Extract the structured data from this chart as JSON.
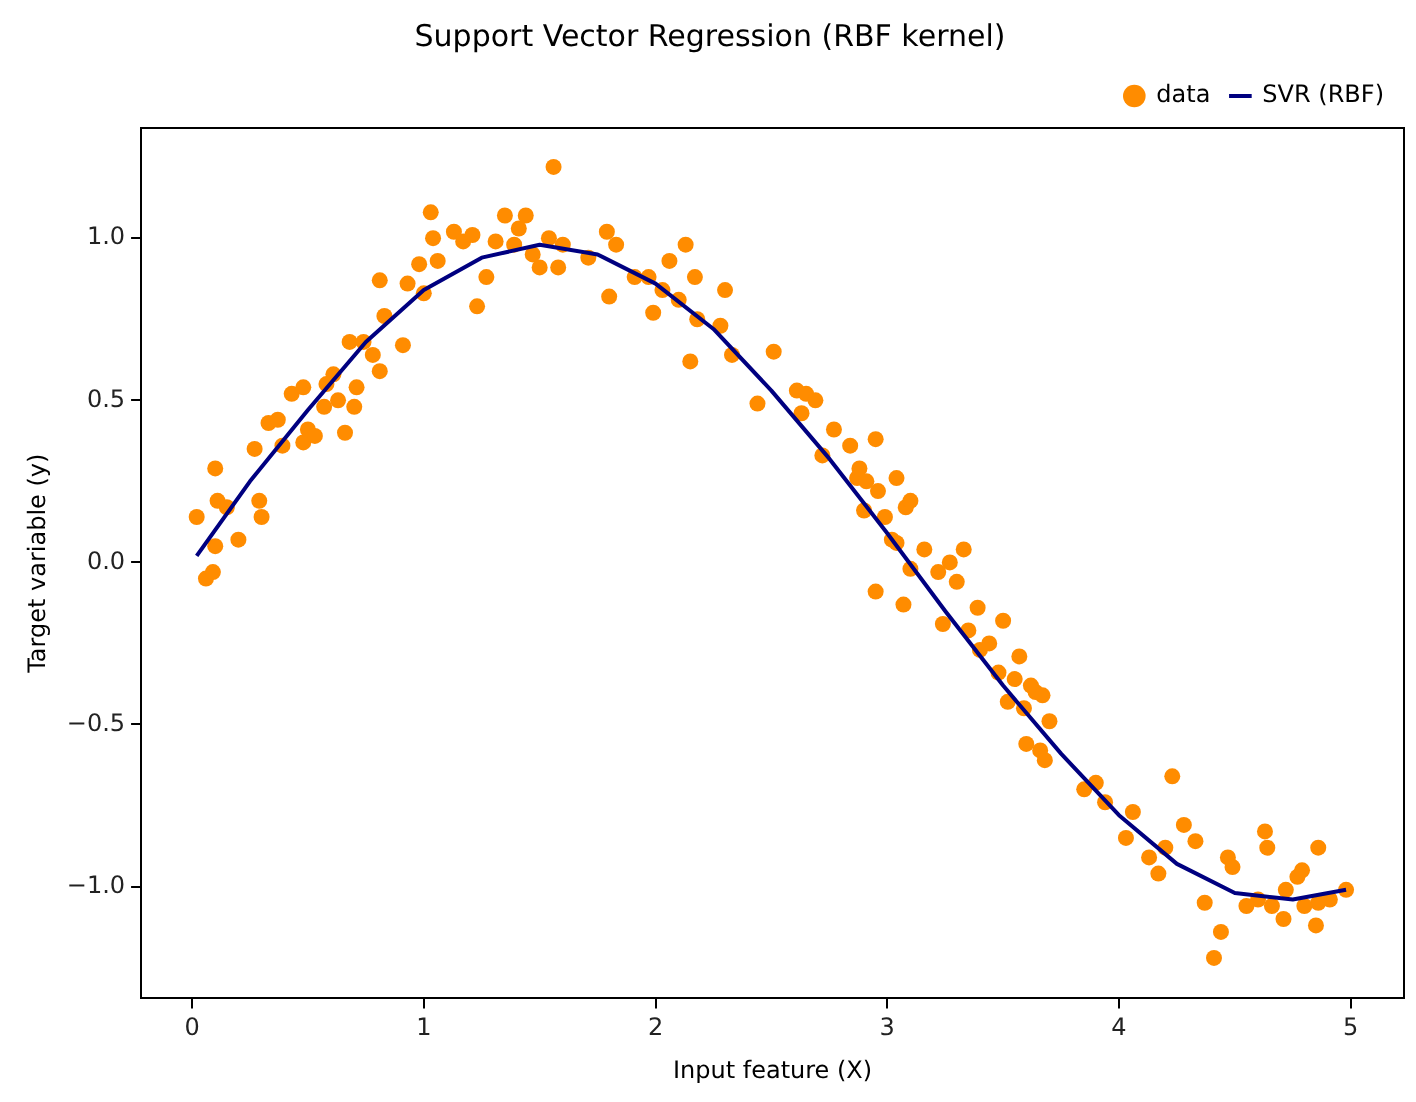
{
  "chart_data": {
    "type": "scatter",
    "title": "Support Vector Regression (RBF kernel)",
    "xlabel": "Input feature (X)",
    "ylabel": "Target variable (y)",
    "xlim": [
      -0.22,
      5.23
    ],
    "ylim": [
      -1.345,
      1.34
    ],
    "xticks": [
      0,
      1,
      2,
      3,
      4,
      5
    ],
    "yticks": [
      {
        "value": -1,
        "label": "−1.0"
      },
      -0.5,
      {
        "value": 0,
        "label": "0.0"
      },
      0.5,
      {
        "value": 1,
        "label": "1.0"
      }
    ],
    "grid": false,
    "legend": "top right",
    "series": [
      {
        "name": "data",
        "type": "scatter",
        "marker": "circle",
        "color": "#ff8c00",
        "x": [
          0.02,
          0.06,
          0.09,
          0.1,
          0.1,
          0.11,
          0.15,
          0.2,
          0.27,
          0.29,
          0.3,
          0.33,
          0.37,
          0.39,
          0.43,
          0.48,
          0.48,
          0.5,
          0.53,
          0.57,
          0.58,
          0.61,
          0.63,
          0.66,
          0.68,
          0.7,
          0.71,
          0.74,
          0.78,
          0.81,
          0.81,
          0.83,
          0.91,
          0.93,
          0.98,
          1.0,
          1.03,
          1.04,
          1.06,
          1.13,
          1.17,
          1.21,
          1.23,
          1.27,
          1.31,
          1.35,
          1.39,
          1.41,
          1.44,
          1.47,
          1.5,
          1.54,
          1.56,
          1.58,
          1.6,
          1.71,
          1.79,
          1.8,
          1.83,
          1.91,
          1.97,
          1.99,
          2.03,
          2.06,
          2.1,
          2.13,
          2.15,
          2.17,
          2.18,
          2.28,
          2.3,
          2.33,
          2.44,
          2.51,
          2.61,
          2.63,
          2.65,
          2.69,
          2.72,
          2.77,
          2.84,
          2.87,
          2.88,
          2.9,
          2.91,
          2.95,
          2.96,
          2.99,
          3.02,
          3.04,
          3.04,
          3.08,
          3.1,
          3.1,
          2.95,
          3.07,
          3.16,
          3.22,
          3.24,
          3.27,
          3.3,
          3.33,
          3.35,
          3.39,
          3.4,
          3.44,
          3.48,
          3.5,
          3.52,
          3.55,
          3.57,
          3.59,
          3.62,
          3.64,
          3.67,
          3.6,
          3.66,
          3.68,
          3.7,
          3.85,
          3.9,
          3.94,
          4.03,
          4.06,
          4.13,
          4.17,
          4.2,
          4.23,
          4.28,
          4.33,
          4.37,
          4.41,
          4.44,
          4.47,
          4.49,
          4.6,
          4.63,
          4.64,
          4.66,
          4.71,
          4.72,
          4.77,
          4.79,
          4.85,
          4.86,
          4.86,
          4.91,
          4.98,
          4.8,
          4.55
        ],
        "values": [
          0.14,
          -0.05,
          -0.03,
          0.05,
          0.29,
          0.19,
          0.17,
          0.07,
          0.35,
          0.19,
          0.14,
          0.43,
          0.44,
          0.36,
          0.52,
          0.54,
          0.37,
          0.41,
          0.39,
          0.48,
          0.55,
          0.58,
          0.5,
          0.4,
          0.68,
          0.48,
          0.54,
          0.68,
          0.64,
          0.87,
          0.59,
          0.76,
          0.67,
          0.86,
          0.92,
          0.83,
          1.08,
          1.0,
          0.93,
          1.02,
          0.99,
          1.01,
          0.79,
          0.88,
          0.99,
          1.07,
          0.98,
          1.03,
          1.07,
          0.95,
          0.91,
          1.0,
          1.22,
          0.91,
          0.98,
          0.94,
          1.02,
          0.82,
          0.98,
          0.88,
          0.88,
          0.77,
          0.84,
          0.93,
          0.81,
          0.98,
          0.62,
          0.88,
          0.75,
          0.73,
          0.84,
          0.64,
          0.49,
          0.65,
          0.53,
          0.46,
          0.52,
          0.5,
          0.33,
          0.41,
          0.36,
          0.26,
          0.29,
          0.16,
          0.25,
          0.38,
          0.22,
          0.14,
          0.07,
          0.26,
          0.06,
          0.17,
          0.19,
          -0.02,
          -0.09,
          -0.13,
          0.04,
          -0.03,
          -0.19,
          0.0,
          -0.06,
          0.04,
          -0.21,
          -0.14,
          -0.27,
          -0.25,
          -0.34,
          -0.18,
          -0.43,
          -0.36,
          -0.29,
          -0.45,
          -0.38,
          -0.4,
          -0.41,
          -0.56,
          -0.58,
          -0.61,
          -0.49,
          -0.7,
          -0.68,
          -0.74,
          -0.85,
          -0.77,
          -0.91,
          -0.96,
          -0.88,
          -0.66,
          -0.81,
          -0.86,
          -1.05,
          -1.22,
          -1.14,
          -0.91,
          -0.94,
          -1.04,
          -0.83,
          -0.88,
          -1.06,
          -1.1,
          -1.01,
          -0.97,
          -0.95,
          -1.12,
          -0.88,
          -1.05,
          -1.04,
          -1.01,
          -1.06,
          -1.06
        ]
      },
      {
        "name": "SVR (RBF)",
        "type": "line",
        "marker": "none",
        "line_style": "solid",
        "color": "#000080",
        "x": [
          0.02,
          0.25,
          0.5,
          0.75,
          1.0,
          1.25,
          1.5,
          1.75,
          2.0,
          2.25,
          2.5,
          2.75,
          3.0,
          3.25,
          3.5,
          3.75,
          4.0,
          4.25,
          4.5,
          4.75,
          4.98
        ],
        "values": [
          0.02,
          0.25,
          0.47,
          0.68,
          0.84,
          0.94,
          0.98,
          0.95,
          0.86,
          0.72,
          0.53,
          0.32,
          0.09,
          -0.15,
          -0.38,
          -0.59,
          -0.78,
          -0.93,
          -1.02,
          -1.04,
          -1.01
        ]
      }
    ]
  }
}
